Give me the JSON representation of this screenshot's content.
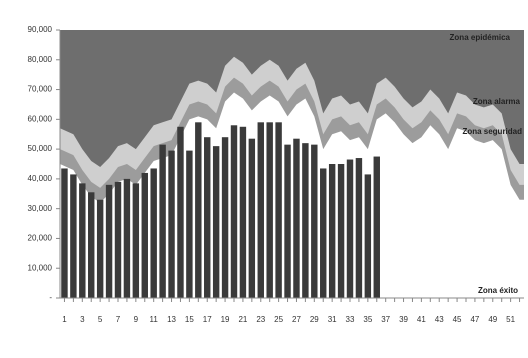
{
  "chart_data": {
    "type": "endemic-channel",
    "categories": [
      "1",
      null,
      "3",
      null,
      "5",
      null,
      "7",
      null,
      "9",
      null,
      "11",
      null,
      "13",
      null,
      "15",
      null,
      "17",
      null,
      "19",
      null,
      "21",
      null,
      "23",
      null,
      "25",
      null,
      "27",
      null,
      "29",
      null,
      "31",
      null,
      "33",
      null,
      "35",
      null,
      "37",
      null,
      "39",
      null,
      "41",
      null,
      "43",
      null,
      "45",
      null,
      "47",
      null,
      "49",
      null,
      "51",
      null
    ],
    "ylim": [
      0,
      90000
    ],
    "yticks": [
      {
        "value": 0,
        "label": "-"
      },
      {
        "value": 10000,
        "label": "10,000"
      },
      {
        "value": 20000,
        "label": "20,000"
      },
      {
        "value": 30000,
        "label": "30,000"
      },
      {
        "value": 40000,
        "label": "40,000"
      },
      {
        "value": 50000,
        "label": "50,000"
      },
      {
        "value": 60000,
        "label": "60,000"
      },
      {
        "value": 70000,
        "label": "70,000"
      },
      {
        "value": 80000,
        "label": "80,000"
      },
      {
        "value": 90000,
        "label": "90,000"
      }
    ],
    "background_color": "#6e6e6e",
    "areas": [
      {
        "name": "Zona éxito",
        "color": "#ffffff",
        "values": [
          45000,
          43000,
          38000,
          34000,
          32000,
          35000,
          39000,
          40000,
          38000,
          42000,
          46000,
          47000,
          48000,
          54000,
          60000,
          61000,
          60000,
          57000,
          66000,
          69000,
          67000,
          63000,
          66000,
          68000,
          66000,
          61000,
          65000,
          67000,
          61000,
          50000,
          55000,
          56000,
          53000,
          54000,
          50000,
          60000,
          62000,
          59000,
          55000,
          52000,
          54000,
          58000,
          55000,
          50000,
          57000,
          56000,
          53000,
          52000,
          53000,
          50000,
          38000,
          33000
        ]
      },
      {
        "name": "Zona seguridad",
        "color": "#9c9c9c",
        "values": [
          5000,
          5000,
          5000,
          5000,
          5000,
          5000,
          5000,
          5000,
          5000,
          5000,
          5000,
          5000,
          5000,
          5000,
          5000,
          5000,
          5000,
          5000,
          5000,
          5000,
          5000,
          5000,
          5000,
          5000,
          5000,
          5000,
          5000,
          5000,
          5000,
          5000,
          5000,
          5000,
          5000,
          5000,
          5000,
          5000,
          5000,
          5000,
          5000,
          5000,
          5000,
          5000,
          5000,
          5000,
          5000,
          5000,
          5000,
          5000,
          5000,
          5000,
          5000,
          5000
        ]
      },
      {
        "name": "Zona alarma",
        "color": "#cfcfcf",
        "values": [
          7000,
          7000,
          7000,
          7000,
          7000,
          7000,
          7000,
          7000,
          7000,
          7000,
          7000,
          7000,
          7000,
          7000,
          7000,
          7000,
          7000,
          7000,
          7000,
          7000,
          7000,
          7000,
          7000,
          7000,
          7000,
          7000,
          7000,
          7000,
          7000,
          7000,
          7000,
          7000,
          7000,
          7000,
          7000,
          7000,
          7000,
          7000,
          7000,
          7000,
          7000,
          7000,
          7000,
          7000,
          7000,
          7000,
          7000,
          7000,
          7000,
          7000,
          7000,
          7000
        ]
      }
    ],
    "bars": {
      "color": "#3a3a3a",
      "values": [
        43500,
        41500,
        38500,
        35500,
        33000,
        38000,
        39000,
        40000,
        38500,
        42000,
        43500,
        51500,
        49500,
        57500,
        49500,
        59000,
        54000,
        51000,
        54000,
        58000,
        57500,
        53500,
        59000,
        59000,
        59000,
        51500,
        53500,
        52000,
        51500,
        43500,
        45000,
        45000,
        46500,
        47000,
        41500,
        47500
      ]
    },
    "annotations": [
      "Zona epidémica",
      "Zona alarma",
      "Zona seguridad",
      "Zona éxito"
    ]
  }
}
